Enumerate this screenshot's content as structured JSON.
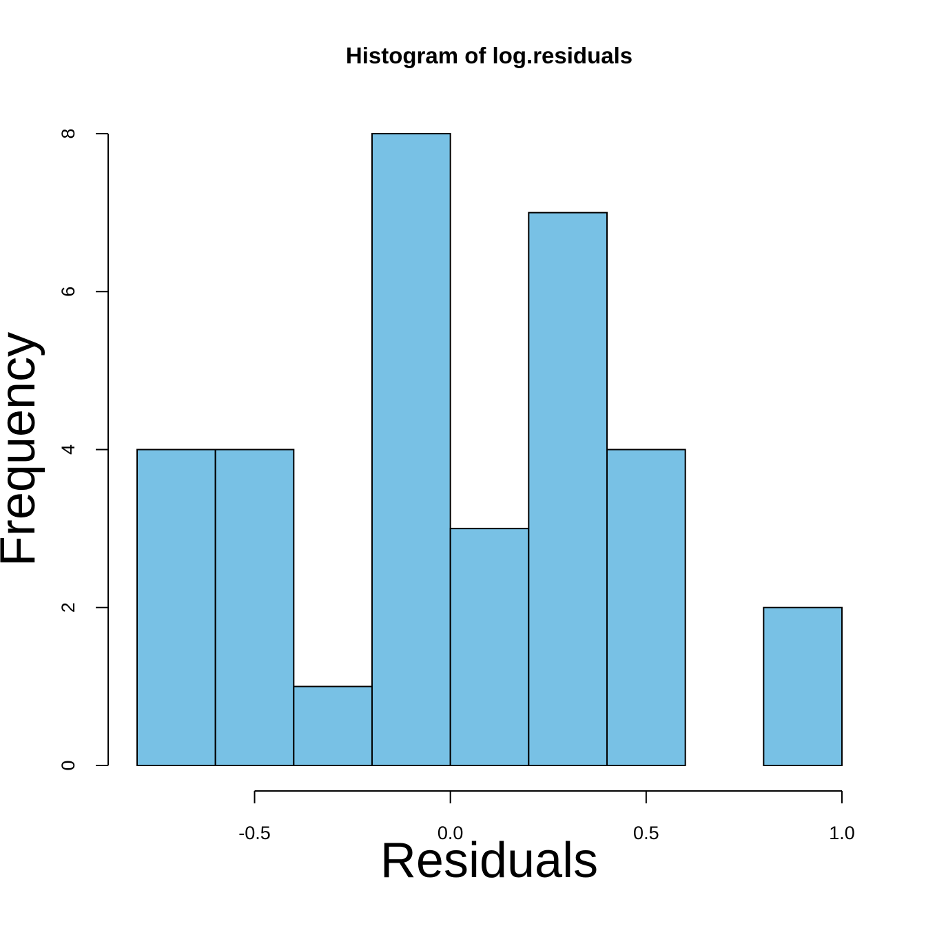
{
  "chart_data": {
    "type": "bar",
    "title": "Histogram of log.residuals",
    "xlabel": "Residuals",
    "ylabel": "Frequency",
    "bins": [
      {
        "start": -0.8,
        "end": -0.6,
        "count": 4
      },
      {
        "start": -0.6,
        "end": -0.4,
        "count": 4
      },
      {
        "start": -0.4,
        "end": -0.2,
        "count": 1
      },
      {
        "start": -0.2,
        "end": 0.0,
        "count": 8
      },
      {
        "start": 0.0,
        "end": 0.2,
        "count": 3
      },
      {
        "start": 0.2,
        "end": 0.4,
        "count": 7
      },
      {
        "start": 0.4,
        "end": 0.6,
        "count": 4
      },
      {
        "start": 0.6,
        "end": 0.8,
        "count": 0
      },
      {
        "start": 0.8,
        "end": 1.0,
        "count": 2
      }
    ],
    "xticks": [
      -0.5,
      0.0,
      0.5,
      1.0
    ],
    "xtick_labels": [
      "-0.5",
      "0.0",
      "0.5",
      "1.0"
    ],
    "yticks": [
      0,
      2,
      4,
      6,
      8
    ],
    "ytick_labels": [
      "0",
      "2",
      "4",
      "6",
      "8"
    ],
    "xlim": [
      -0.8,
      1.0
    ],
    "ylim": [
      0,
      8
    ],
    "grid": false,
    "bar_color": "#78c1e5"
  }
}
